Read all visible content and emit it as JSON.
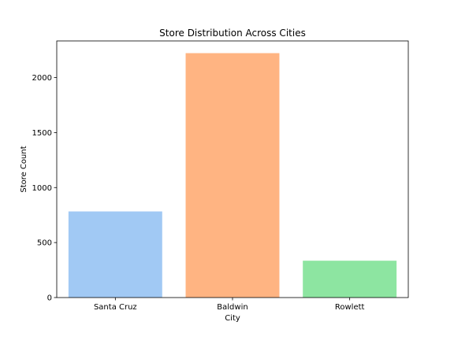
{
  "chart_data": {
    "type": "bar",
    "title": "Store Distribution Across Cities",
    "xlabel": "City",
    "ylabel": "Store Count",
    "categories": [
      "Santa Cruz",
      "Baldwin",
      "Rowlett"
    ],
    "values": [
      783,
      2222,
      335
    ],
    "colors": [
      "#a1c9f4",
      "#ffb482",
      "#8de5a1"
    ],
    "ylim": [
      0,
      2333
    ],
    "yticks": [
      0,
      500,
      1000,
      1500,
      2000
    ],
    "grid": false,
    "legend": "none"
  }
}
